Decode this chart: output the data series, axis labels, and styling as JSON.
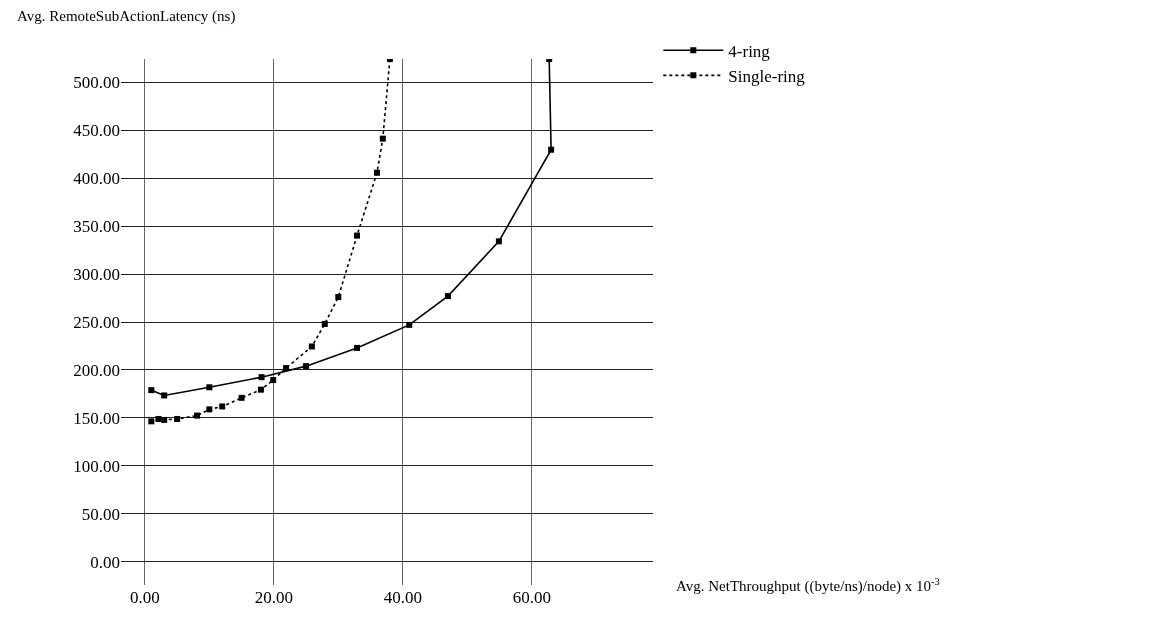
{
  "chart_data": {
    "type": "line",
    "xlabel": "Avg. NetThroughput ((byte/ns)/node) x 10$^{-3}$",
    "ylabel": "Avg. RemoteSubActionLatency (ns)",
    "xlim": [
      -3.7,
      78.8
    ],
    "xticks": [
      {
        "value": 0,
        "label": "0.00"
      },
      {
        "value": 20,
        "label": "20.00"
      },
      {
        "value": 40,
        "label": "40.00"
      },
      {
        "value": 60,
        "label": "60.00"
      }
    ],
    "ylim": [
      -24,
      524
    ],
    "yticks": [
      {
        "value": 0,
        "label": "0.00"
      },
      {
        "value": 50,
        "label": "50.00"
      },
      {
        "value": 100,
        "label": "100.00"
      },
      {
        "value": 150,
        "label": "150.00"
      },
      {
        "value": 200,
        "label": "200.00"
      },
      {
        "value": 250,
        "label": "250.00"
      },
      {
        "value": 300,
        "label": "300.00"
      },
      {
        "value": 350,
        "label": "350.00"
      },
      {
        "value": 400,
        "label": "400.00"
      },
      {
        "value": 450,
        "label": "450.00"
      },
      {
        "value": 500,
        "label": "500.00"
      }
    ],
    "grid": true,
    "legend": "top right",
    "marker": "square",
    "series": [
      {
        "name": "4-ring",
        "color": "#000000",
        "line_style": "solid",
        "x": [
          1.0,
          3.0,
          10.0,
          18.1,
          25.0,
          32.9,
          41.0,
          47.0,
          54.9,
          63.0,
          62.7
        ],
        "values": [
          179,
          173.5,
          182,
          192.5,
          204,
          223,
          247,
          277,
          334,
          429.5,
          524
        ]
      },
      {
        "name": "Single-ring",
        "color": "#000000",
        "line_style": "dotted",
        "x": [
          1.0,
          2.1,
          3.0,
          5.0,
          8.1,
          10.0,
          12.0,
          15.0,
          18.0,
          19.9,
          21.9,
          25.9,
          27.9,
          30.0,
          32.9,
          36.0,
          36.9,
          38.0
        ],
        "values": [
          146.5,
          149,
          148,
          149,
          152.5,
          159,
          162,
          171,
          179.5,
          189.5,
          202,
          224.5,
          248,
          276,
          340,
          405.5,
          441,
          524
        ]
      }
    ]
  }
}
